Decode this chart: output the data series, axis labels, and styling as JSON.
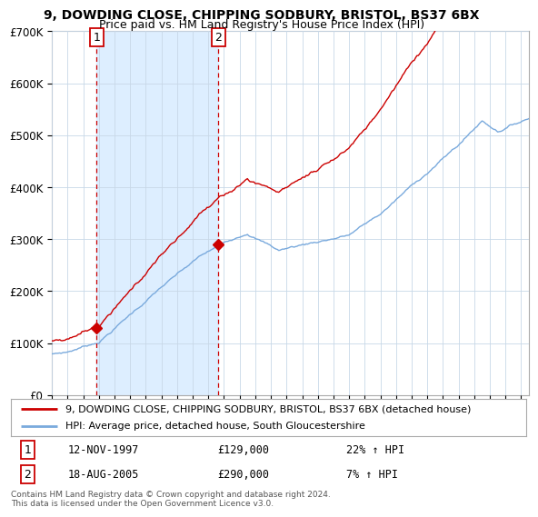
{
  "title": "9, DOWDING CLOSE, CHIPPING SODBURY, BRISTOL, BS37 6BX",
  "subtitle": "Price paid vs. HM Land Registry's House Price Index (HPI)",
  "legend_line1": "9, DOWDING CLOSE, CHIPPING SODBURY, BRISTOL, BS37 6BX (detached house)",
  "legend_line2": "HPI: Average price, detached house, South Gloucestershire",
  "sale1_date": "12-NOV-1997",
  "sale1_price": 129000,
  "sale1_hpi": "22% ↑ HPI",
  "sale2_date": "18-AUG-2005",
  "sale2_price": 290000,
  "sale2_hpi": "7% ↑ HPI",
  "footnote": "Contains HM Land Registry data © Crown copyright and database right 2024.\nThis data is licensed under the Open Government Licence v3.0.",
  "red_color": "#cc0000",
  "blue_color": "#7aaadd",
  "shading_color": "#ddeeff",
  "bg_color": "#ffffff",
  "grid_color": "#c8d8e8",
  "title_color": "#000000",
  "ylim": [
    0,
    700000
  ],
  "yticks": [
    0,
    100000,
    200000,
    300000,
    400000,
    500000,
    600000,
    700000
  ],
  "ytick_labels": [
    "£0",
    "£100K",
    "£200K",
    "£300K",
    "£400K",
    "£500K",
    "£600K",
    "£700K"
  ],
  "sale1_x": 1997.87,
  "sale2_x": 2005.63,
  "xmin": 1995.0,
  "xmax": 2025.5
}
